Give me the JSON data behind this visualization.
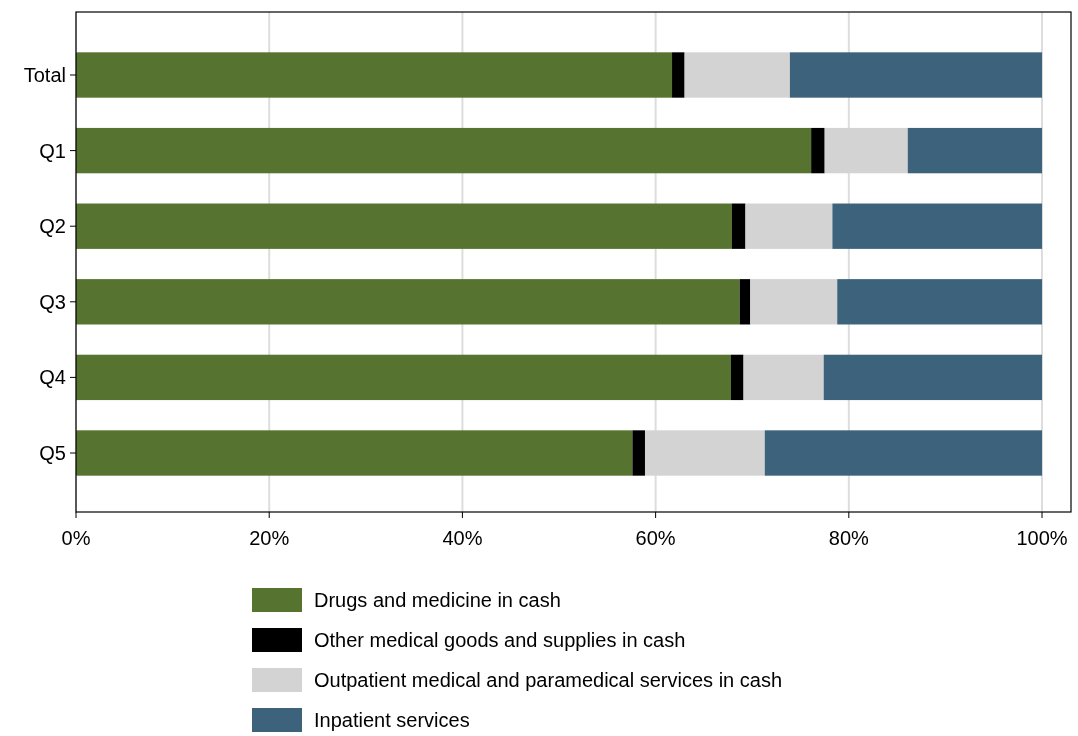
{
  "chart_data": {
    "type": "bar",
    "orientation": "horizontal",
    "stacked": true,
    "categories": [
      "Total",
      "Q1",
      "Q2",
      "Q3",
      "Q4",
      "Q5"
    ],
    "series": [
      {
        "name": "Drugs and medicine in cash",
        "color": "#56732f",
        "values": [
          61.7,
          76.1,
          67.9,
          68.7,
          67.8,
          57.6
        ]
      },
      {
        "name": "Other medical goods and supplies in cash",
        "color": "#000000",
        "values": [
          1.3,
          1.4,
          1.4,
          1.1,
          1.3,
          1.3
        ]
      },
      {
        "name": "Outpatient medical and paramedical services in cash",
        "color": "#d3d3d3",
        "values": [
          10.9,
          8.6,
          9.0,
          9.0,
          8.3,
          12.4
        ]
      },
      {
        "name": "Inpatient services",
        "color": "#3d627b",
        "values": [
          26.1,
          13.9,
          21.7,
          21.2,
          22.6,
          28.7
        ]
      }
    ],
    "xlim": [
      0,
      103
    ],
    "xticks": [
      {
        "value": 0,
        "label": "0%"
      },
      {
        "value": 20,
        "label": "20%"
      },
      {
        "value": 40,
        "label": "40%"
      },
      {
        "value": 60,
        "label": "60%"
      },
      {
        "value": 80,
        "label": "80%"
      },
      {
        "value": 100,
        "label": "100%"
      }
    ],
    "grid": "x",
    "legend": "bottom"
  }
}
